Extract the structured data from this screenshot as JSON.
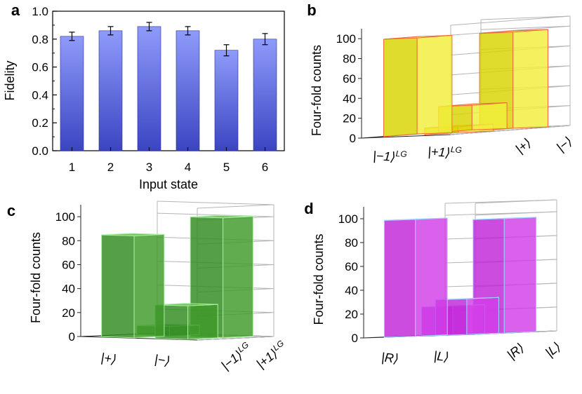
{
  "chart_data": [
    {
      "panel": "a",
      "type": "bar",
      "xlabel": "Input state",
      "ylabel": "Fidelity",
      "ylim": [
        0.0,
        1.0
      ],
      "yticks": [
        "0.0",
        "0.2",
        "0.4",
        "0.6",
        "0.8",
        "1.0"
      ],
      "categories": [
        "1",
        "2",
        "3",
        "4",
        "5",
        "6"
      ],
      "values": [
        0.82,
        0.86,
        0.89,
        0.86,
        0.72,
        0.8
      ],
      "errors": [
        0.03,
        0.03,
        0.03,
        0.03,
        0.04,
        0.04
      ],
      "colors": {
        "top": "#8e9bfa",
        "bottom": "#3b45c2"
      }
    },
    {
      "panel": "b",
      "type": "bar3d",
      "zlabel": "Four-fold counts",
      "zlim": [
        0,
        100
      ],
      "zticks": [
        "0",
        "20",
        "40",
        "60",
        "80",
        "100"
      ],
      "row_labels": [
        "|−1⟩",
        "|+1⟩"
      ],
      "row_label_sub": "LG",
      "col_labels": [
        "|+⟩",
        "|−⟩"
      ],
      "col_label_sub": "",
      "values": [
        [
          98,
          7
        ],
        [
          26,
          98
        ]
      ],
      "colors": {
        "front": "#d9d400",
        "side": "#f2ee3c",
        "top": "#f7f27a",
        "edge": "#f06a3a"
      }
    },
    {
      "panel": "c",
      "type": "bar3d",
      "zlabel": "Four-fold counts",
      "zlim": [
        0,
        100
      ],
      "zticks": [
        "0",
        "20",
        "40",
        "60",
        "80",
        "100"
      ],
      "row_labels": [
        "|+⟩",
        "|−⟩"
      ],
      "row_label_sub": "",
      "col_labels": [
        "|−1⟩",
        "|+1⟩"
      ],
      "col_label_sub": "LG",
      "values": [
        [
          85,
          8
        ],
        [
          28,
          100
        ]
      ],
      "colors": {
        "front": "#2f8a1f",
        "side": "#3f9a2a",
        "top": "#5cb544",
        "edge": "#a7f0a0"
      }
    },
    {
      "panel": "d",
      "type": "bar3d",
      "zlabel": "Four-fold counts",
      "zlim": [
        0,
        100
      ],
      "zticks": [
        "0",
        "20",
        "40",
        "60",
        "80",
        "100"
      ],
      "row_labels": [
        "|R⟩",
        "|L⟩"
      ],
      "row_label_sub": "",
      "col_labels": [
        "|R⟩",
        "|L⟩"
      ],
      "col_label_sub": "",
      "values": [
        [
          98,
          24
        ],
        [
          30,
          96
        ]
      ],
      "colors": {
        "front": "#c224d9",
        "side": "#d23ee8",
        "top": "#e27cf2",
        "edge": "#9fd3ff"
      }
    }
  ]
}
